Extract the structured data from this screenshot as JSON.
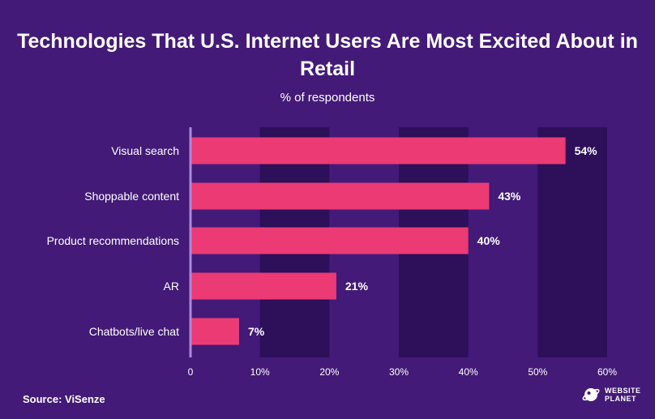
{
  "chart_data": {
    "type": "bar",
    "orientation": "horizontal",
    "title": "Technologies That U.S. Internet Users Are Most Excited About in Retail",
    "subtitle": "% of respondents",
    "categories": [
      "Visual search",
      "Shoppable content",
      "Product recommendations",
      "AR",
      "Chatbots/live chat"
    ],
    "values": [
      54,
      43,
      40,
      21,
      7
    ],
    "value_labels": [
      "54%",
      "43%",
      "40%",
      "21%",
      "7%"
    ],
    "xlim": [
      0,
      60
    ],
    "xticks": [
      0,
      10,
      20,
      30,
      40,
      50,
      60
    ],
    "xtick_labels": [
      "0",
      "10%",
      "20%",
      "30%",
      "40%",
      "50%",
      "60%"
    ],
    "grid": "alternating bands",
    "colors": {
      "background": "#431a77",
      "band": "#2d0f5a",
      "bar": "#ec3a74",
      "axis": "#a98bdc",
      "text": "#ffffff"
    }
  },
  "source": "Source: ViSenze",
  "logo": {
    "line1": "WEBSITE",
    "line2": "PLANET"
  }
}
